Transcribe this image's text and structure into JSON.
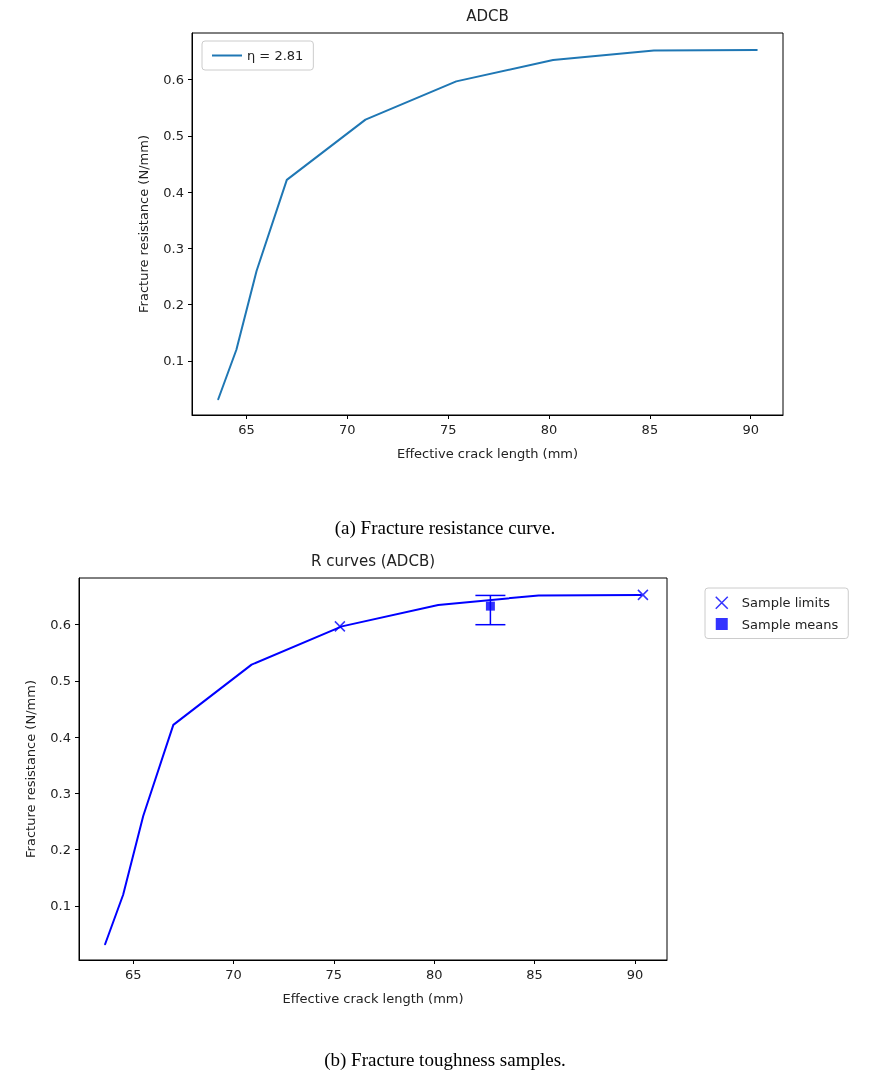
{
  "chart_data": [
    {
      "type": "line",
      "title": "ADCB",
      "xlabel": "Effective crack length (mm)",
      "ylabel": "Fracture resistance (N/mm)",
      "annotations": [
        "(a) Fracture resistance curve."
      ],
      "xlim": [
        62.3,
        91.6
      ],
      "xticks": [
        65,
        70,
        75,
        80,
        85,
        90
      ],
      "ylim": [
        0.004,
        0.683
      ],
      "yticks": [
        0.1,
        0.2,
        0.3,
        0.4,
        0.5,
        0.6
      ],
      "grid": false,
      "legend": "top left",
      "marker": "none",
      "series": [
        {
          "name": "η = 2.81",
          "color": "#1f77b4",
          "x": [
            63.6,
            64.5,
            65.5,
            67.0,
            70.9,
            75.4,
            80.2,
            85.2,
            90.3
          ],
          "values": [
            0.032,
            0.12,
            0.26,
            0.422,
            0.529,
            0.597,
            0.635,
            0.652,
            0.653
          ]
        }
      ]
    },
    {
      "type": "line",
      "title": "R curves (ADCB)",
      "xlabel": "Effective crack length (mm)",
      "ylabel": "Fracture resistance (N/mm)",
      "annotations": [
        "(b) Fracture toughness samples."
      ],
      "xlim": [
        62.3,
        91.6
      ],
      "xticks": [
        65,
        70,
        75,
        80,
        85,
        90
      ],
      "ylim": [
        0.004,
        0.683
      ],
      "yticks": [
        0.1,
        0.2,
        0.3,
        0.4,
        0.5,
        0.6
      ],
      "grid": false,
      "legend": "right",
      "marker": "none",
      "series": [
        {
          "color": "#0000ff",
          "x": [
            63.6,
            64.5,
            65.5,
            67.0,
            70.9,
            75.4,
            80.2,
            85.2,
            90.3
          ],
          "values": [
            0.032,
            0.12,
            0.26,
            0.422,
            0.529,
            0.597,
            0.635,
            0.652,
            0.653
          ]
        },
        {
          "name": "Sample limits",
          "type": "scatter",
          "marker": "cross",
          "color": "#0000ff",
          "x": [
            75.3,
            90.4
          ],
          "values": [
            0.597,
            0.653
          ]
        },
        {
          "name": "Sample means",
          "type": "scatter",
          "marker": "square",
          "color": "#0000ff",
          "x": [
            82.8
          ],
          "values": [
            0.633
          ],
          "errors": [
            [
              0.6,
              0.652
            ]
          ]
        }
      ]
    }
  ]
}
